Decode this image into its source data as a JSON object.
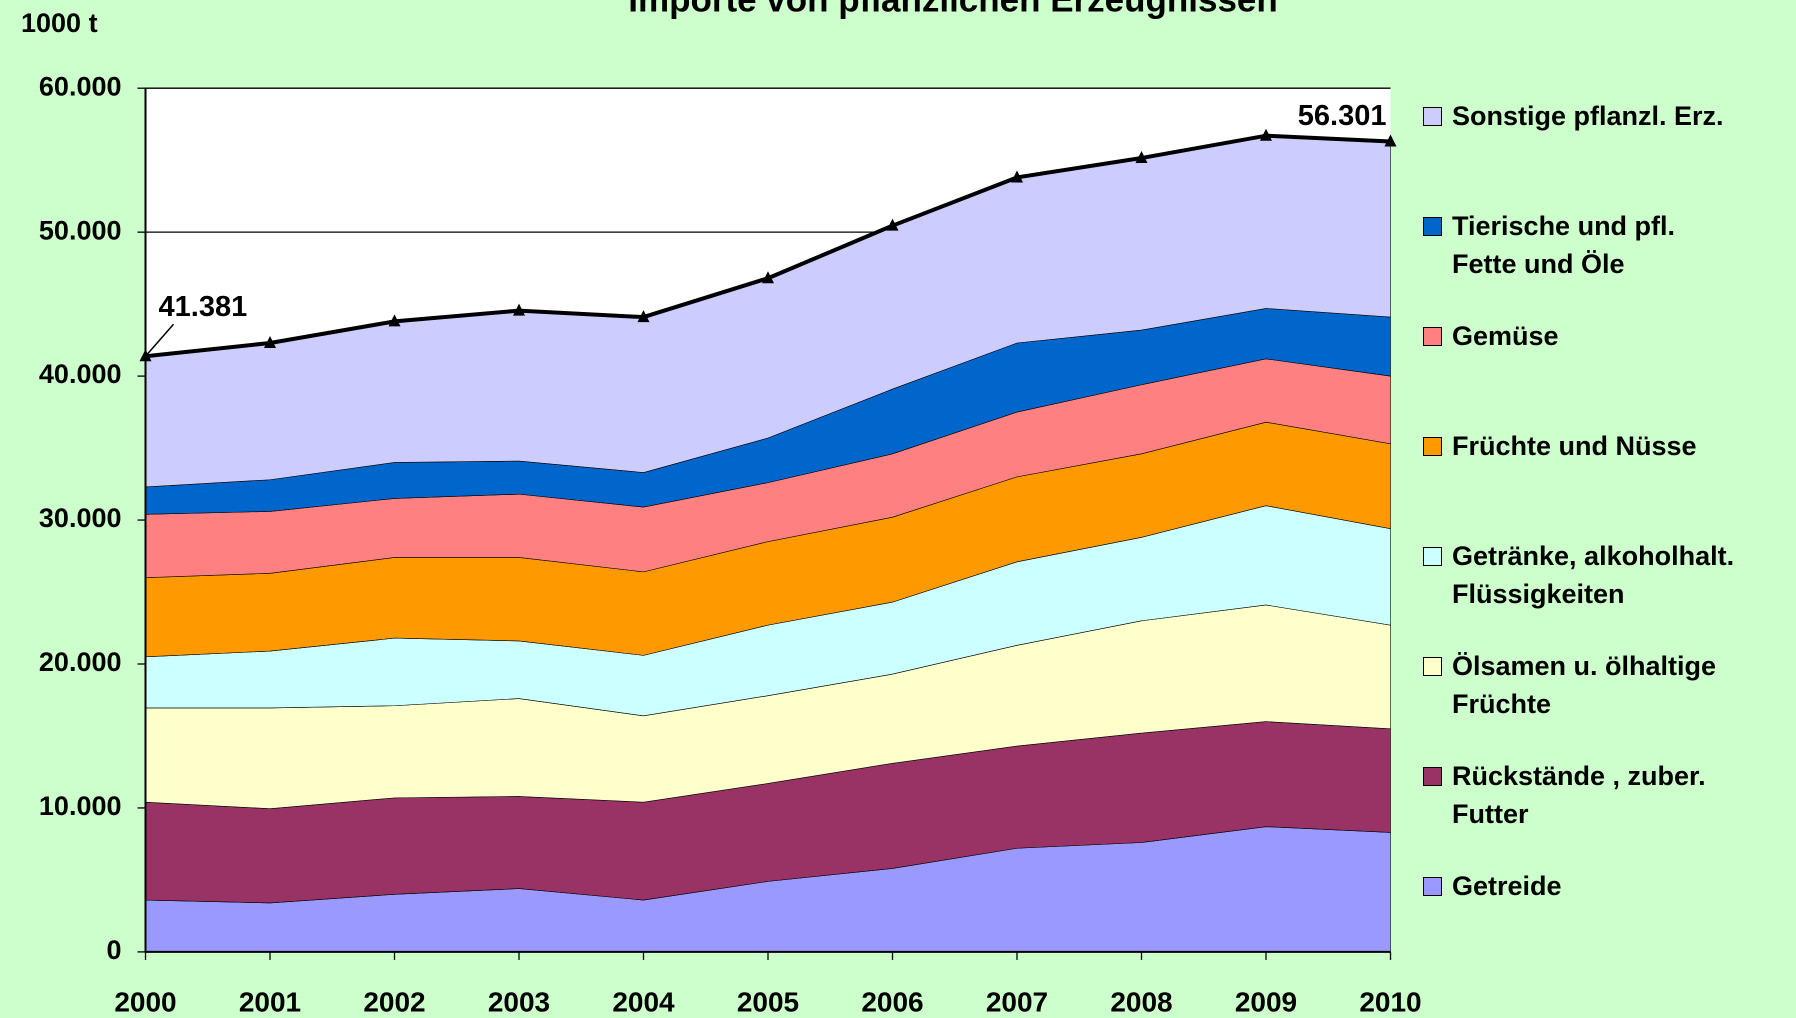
{
  "chart_data": {
    "type": "stacked-area",
    "title": "Importe von pflanzlichen Erzeugnissen",
    "y_label": "1000 t",
    "categories": [
      "2000",
      "2001",
      "2002",
      "2003",
      "2004",
      "2005",
      "2006",
      "2007",
      "2008",
      "2009",
      "2010"
    ],
    "series": [
      {
        "name": "Getreide",
        "color": "#9999ff",
        "values": [
          3600,
          3400,
          4000,
          4400,
          3600,
          4900,
          5800,
          7200,
          7600,
          8700,
          8300
        ]
      },
      {
        "name": "Rückstände , zuber.\nFutter",
        "color": "#993366",
        "values": [
          6800,
          6550,
          6700,
          6400,
          6800,
          6800,
          7300,
          7100,
          7600,
          7300,
          7200
        ]
      },
      {
        "name": "Ölsamen u. ölhaltige\nFrüchte",
        "color": "#ffffcc",
        "values": [
          6550,
          7000,
          6400,
          6800,
          6000,
          6100,
          6200,
          7000,
          7800,
          8100,
          7200
        ]
      },
      {
        "name": "Getränke, alkoholhalt.\nFlüssigkeiten",
        "color": "#ccffff",
        "values": [
          3550,
          3950,
          4700,
          4000,
          4200,
          4900,
          5000,
          5800,
          5800,
          6900,
          6700
        ]
      },
      {
        "name": "Früchte und Nüsse",
        "color": "#ff9900",
        "values": [
          5500,
          5400,
          5600,
          5800,
          5800,
          5800,
          5900,
          5900,
          5800,
          5800,
          5900
        ]
      },
      {
        "name": "Gemüse",
        "color": "#ff8080",
        "values": [
          4400,
          4300,
          4100,
          4400,
          4500,
          4100,
          4400,
          4500,
          4800,
          4400,
          4700
        ]
      },
      {
        "name": "Tierische und pfl.\nFette und Öle",
        "color": "#0066cc",
        "values": [
          1900,
          2200,
          2500,
          2300,
          2400,
          3100,
          4500,
          4800,
          3800,
          3500,
          4100
        ]
      },
      {
        "name": "Sonstige pflanzl. Erz.",
        "color": "#ccccff",
        "values": [
          9081,
          9500,
          9800,
          10450,
          10800,
          11100,
          11350,
          11500,
          11950,
          12000,
          12201
        ]
      }
    ],
    "annotations": [
      {
        "category": "2000",
        "value": 41381,
        "label": "41.381"
      },
      {
        "category": "2010",
        "value": 56301,
        "label": "56.301"
      }
    ],
    "ylim": [
      0,
      60000
    ],
    "yticks": [
      0,
      {
        "value": 10000,
        "label": "10.000"
      },
      {
        "value": 20000,
        "label": "20.000"
      },
      {
        "value": 30000,
        "label": "30.000"
      },
      {
        "value": 40000,
        "label": "40.000"
      },
      {
        "value": 50000,
        "label": "50.000"
      },
      {
        "value": 60000,
        "label": "60.000"
      }
    ],
    "grid": true,
    "legend": "right"
  }
}
